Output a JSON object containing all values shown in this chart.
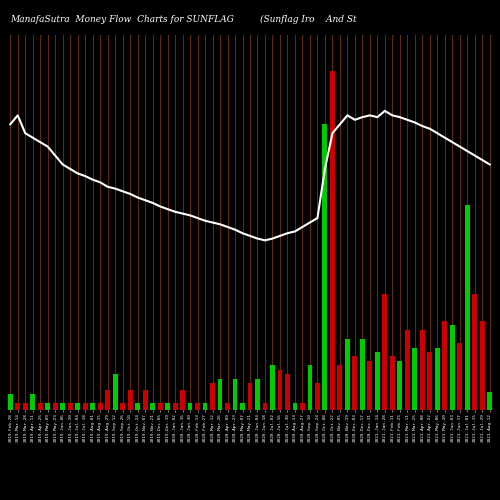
{
  "title_left": "ManafaSutra  Money Flow  Charts for SUNFLAG",
  "title_right": "(Sunflag Iro    And St",
  "background_color": "#000000",
  "n_bars": 65,
  "line_color": "#ffffff",
  "orange_bar_color": "#8B4500",
  "green_bar_color": "#00cc00",
  "red_bar_color": "#cc0000",
  "colors_raw": [
    "green",
    "red",
    "red",
    "green",
    "red",
    "green",
    "red",
    "green",
    "red",
    "green",
    "red",
    "green",
    "red",
    "red",
    "green",
    "red",
    "red",
    "green",
    "red",
    "green",
    "red",
    "green",
    "red",
    "red",
    "green",
    "red",
    "green",
    "red",
    "green",
    "red",
    "green",
    "green",
    "red",
    "green",
    "red",
    "green",
    "red",
    "red",
    "green",
    "red",
    "green",
    "red",
    "green",
    "red",
    "red",
    "green",
    "red",
    "green",
    "red",
    "green",
    "red",
    "red",
    "green",
    "red",
    "green",
    "red",
    "red",
    "green",
    "red",
    "green",
    "red",
    "green",
    "red",
    "red",
    "green"
  ],
  "bar_heights": [
    18,
    8,
    8,
    18,
    8,
    8,
    8,
    8,
    8,
    8,
    8,
    8,
    8,
    22,
    40,
    8,
    22,
    8,
    22,
    8,
    8,
    8,
    8,
    22,
    8,
    8,
    8,
    30,
    35,
    8,
    35,
    8,
    30,
    35,
    8,
    50,
    45,
    40,
    8,
    8,
    50,
    30,
    320,
    380,
    50,
    80,
    60,
    80,
    55,
    65,
    130,
    60,
    55,
    90,
    70,
    90,
    65,
    70,
    100,
    95,
    75,
    230,
    130,
    100,
    20
  ],
  "line_values": [
    320,
    330,
    310,
    305,
    300,
    295,
    285,
    275,
    270,
    265,
    262,
    258,
    255,
    250,
    248,
    245,
    242,
    238,
    235,
    232,
    228,
    225,
    222,
    220,
    218,
    215,
    212,
    210,
    208,
    205,
    202,
    198,
    195,
    192,
    190,
    192,
    195,
    198,
    200,
    205,
    210,
    215,
    270,
    310,
    320,
    330,
    325,
    328,
    330,
    328,
    335,
    330,
    328,
    325,
    322,
    318,
    315,
    310,
    305,
    300,
    295,
    290,
    285,
    280,
    275
  ],
  "date_labels": [
    "2019-Feb-28",
    "2019-Mar-14",
    "2019-Mar-28",
    "2019-Apr-11",
    "2019-Apr-25",
    "2019-May-09",
    "2019-May-23",
    "2019-Jun-06",
    "2019-Jun-20",
    "2019-Jul-04",
    "2019-Jul-18",
    "2019-Aug-01",
    "2019-Aug-15",
    "2019-Aug-29",
    "2019-Sep-12",
    "2019-Sep-26",
    "2019-Oct-10",
    "2019-Oct-24",
    "2019-Nov-07",
    "2019-Nov-21",
    "2019-Dec-05",
    "2019-Dec-19",
    "2020-Jan-02",
    "2020-Jan-16",
    "2020-Jan-30",
    "2020-Feb-13",
    "2020-Feb-27",
    "2020-Mar-12",
    "2020-Mar-26",
    "2020-Apr-09",
    "2020-Apr-23",
    "2020-May-07",
    "2020-May-21",
    "2020-Jun-04",
    "2020-Jun-18",
    "2020-Jul-02",
    "2020-Jul-16",
    "2020-Jul-30",
    "2020-Aug-13",
    "2020-Aug-27",
    "2020-Sep-10",
    "2020-Sep-24",
    "2020-Oct-08",
    "2020-Oct-22",
    "2020-Nov-05",
    "2020-Nov-19",
    "2020-Dec-03",
    "2020-Dec-17",
    "2020-Dec-31",
    "2021-Jan-14",
    "2021-Jan-28",
    "2021-Feb-11",
    "2021-Feb-25",
    "2021-Mar-11",
    "2021-Mar-25",
    "2021-Apr-08",
    "2021-Apr-22",
    "2021-May-06",
    "2021-May-20",
    "2021-Jun-03",
    "2021-Jun-17",
    "2021-Jul-01",
    "2021-Jul-15",
    "2021-Jul-29",
    "2021-Aug-12"
  ],
  "ylim": [
    0,
    420
  ],
  "line_ylim_max": 420,
  "figsize": [
    5.0,
    5.0
  ],
  "dpi": 100
}
